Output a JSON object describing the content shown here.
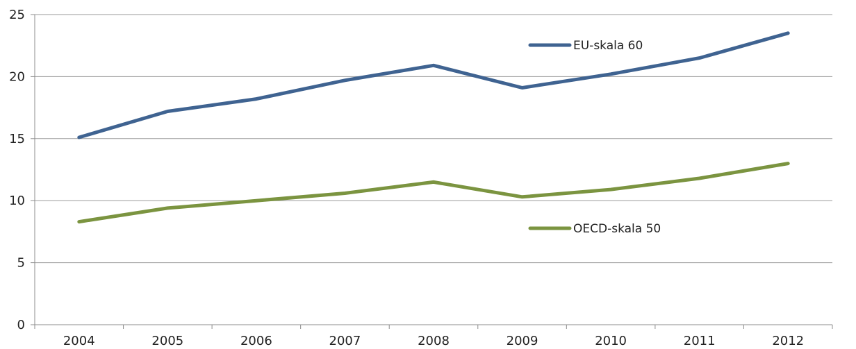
{
  "chart_data": {
    "type": "line",
    "title": "",
    "xlabel": "",
    "ylabel": "",
    "x": [
      "2004",
      "2005",
      "2006",
      "2007",
      "2008",
      "2009",
      "2010",
      "2011",
      "2012"
    ],
    "ylim": [
      0,
      25
    ],
    "yticks": [
      "0",
      "5",
      "10",
      "15",
      "20",
      "25"
    ],
    "grid": true,
    "legend_placement": "inline",
    "series": [
      {
        "name": "EU-skala 60",
        "color": "#3f6391",
        "values": [
          15.1,
          17.2,
          18.2,
          19.7,
          20.9,
          19.1,
          20.2,
          21.5,
          23.5
        ]
      },
      {
        "name": "OECD-skala 50",
        "color": "#7b9440",
        "values": [
          8.3,
          9.4,
          10.0,
          10.6,
          11.5,
          10.3,
          10.9,
          11.8,
          13.0
        ]
      }
    ]
  }
}
